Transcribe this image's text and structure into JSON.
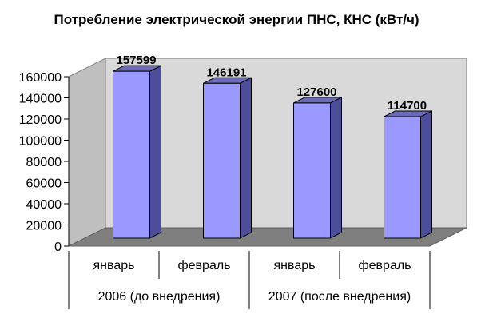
{
  "chart_data": {
    "type": "bar",
    "title": "Потребление электрической энергии ПНС, КНС (кВт/ч)",
    "categories": [
      "январь",
      "февраль",
      "январь",
      "февраль"
    ],
    "groups": [
      {
        "label": "2006 (до внедрения)",
        "categories": [
          0,
          1
        ]
      },
      {
        "label": "2007 (после внедрения)",
        "categories": [
          2,
          3
        ]
      }
    ],
    "values": [
      157599,
      146191,
      127600,
      114700
    ],
    "data_labels": [
      "157599",
      "146191",
      "127600",
      "114700"
    ],
    "ylim": [
      0,
      160000
    ],
    "yticks": [
      0,
      20000,
      40000,
      60000,
      80000,
      100000,
      120000,
      140000,
      160000
    ],
    "xlabel": "",
    "ylabel": "",
    "grid": false,
    "legend": "none",
    "style": "3d",
    "colors": {
      "bar_front": "#9999ff",
      "bar_side": "#4d4d99",
      "bar_top": "#6b6bb8",
      "back_wall": "#d9d9d9",
      "side_wall": "#bfbfbf",
      "floor": "#7f7f7f"
    }
  }
}
